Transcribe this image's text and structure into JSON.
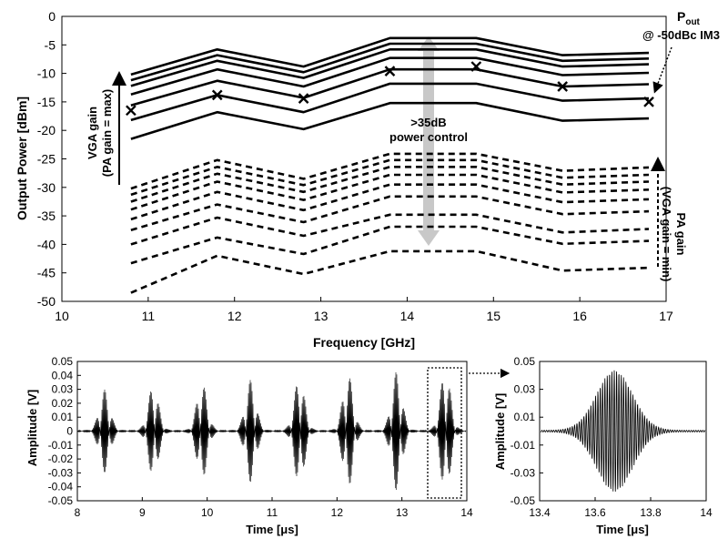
{
  "chart_data": [
    {
      "type": "line",
      "title": "",
      "xlabel": "Frequency [GHz]",
      "ylabel": "Output Power [dBm]",
      "xlim": [
        10,
        17
      ],
      "ylim": [
        -50,
        0
      ],
      "x_ticks": [
        "10",
        "11",
        "12",
        "13",
        "14",
        "15",
        "16",
        "17"
      ],
      "y_ticks": [
        "0",
        "-5",
        "-10",
        "-15",
        "-20",
        "-25",
        "-30",
        "-35",
        "-40",
        "-45",
        "-50"
      ],
      "grid": false,
      "x": [
        10.8,
        11.8,
        12.8,
        13.8,
        14.8,
        15.8,
        16.8
      ],
      "vga_series_solid": [
        [
          -10.2,
          -5.8,
          -8.8,
          -3.8,
          -3.8,
          -6.8,
          -6.4
        ],
        [
          -11.2,
          -6.8,
          -9.8,
          -4.8,
          -4.8,
          -7.8,
          -7.4
        ],
        [
          -12.2,
          -7.8,
          -10.8,
          -5.8,
          -5.8,
          -8.8,
          -8.4
        ],
        [
          -13.7,
          -9.3,
          -12.3,
          -7.3,
          -7.3,
          -10.3,
          -9.9
        ],
        [
          -15.6,
          -11.3,
          -14.3,
          -9.3,
          -9.3,
          -12.3,
          -11.9
        ],
        [
          -18.2,
          -13.8,
          -16.8,
          -11.8,
          -11.8,
          -14.8,
          -14.4
        ],
        [
          -21.5,
          -16.8,
          -19.8,
          -15.2,
          -15.2,
          -18.3,
          -17.9
        ]
      ],
      "pa_series_dashed": [
        [
          -30.2,
          -25.2,
          -28.5,
          -24.1,
          -24.1,
          -27.1,
          -26.5
        ],
        [
          -31.3,
          -26.4,
          -29.6,
          -25.2,
          -25.2,
          -28.3,
          -27.8
        ],
        [
          -32.5,
          -27.6,
          -30.8,
          -26.4,
          -26.4,
          -29.5,
          -29.0
        ],
        [
          -33.9,
          -29.0,
          -32.2,
          -27.8,
          -27.8,
          -30.9,
          -30.4
        ],
        [
          -35.6,
          -30.8,
          -34.0,
          -29.5,
          -29.5,
          -32.6,
          -32.1
        ],
        [
          -37.5,
          -33.0,
          -36.1,
          -31.6,
          -31.6,
          -34.7,
          -34.2
        ],
        [
          -40.0,
          -35.3,
          -38.5,
          -34.8,
          -34.8,
          -37.9,
          -37.3
        ],
        [
          -43.3,
          -38.8,
          -41.7,
          -36.9,
          -36.9,
          -39.9,
          -39.4
        ],
        [
          -48.5,
          -42.0,
          -45.2,
          -41.2,
          -41.2,
          -44.6,
          -44.1
        ]
      ],
      "markers_x": [
        10.8,
        11.8,
        12.8,
        13.8,
        14.8,
        15.8,
        16.8
      ],
      "markers_y": [
        -16.5,
        -13.8,
        -14.4,
        -9.6,
        -8.8,
        -12.3,
        -15.0
      ],
      "annotations": {
        "pout_main": "P",
        "pout_sub": "out",
        "pout_line2": "@ -50dBc IM3",
        "control_line1": ">35dB",
        "control_line2": "power control",
        "vga_line1": "VGA gain",
        "vga_line2": "(PA gain = max)",
        "pa_line1": "PA gain",
        "pa_line2": "(VGA gain = min)"
      }
    },
    {
      "type": "line",
      "title": "",
      "xlabel": "Time [μs]",
      "ylabel": "Amplitude [V]",
      "xlim": [
        8,
        14
      ],
      "ylim": [
        -0.05,
        0.05
      ],
      "x_ticks": [
        "8",
        "9",
        "10",
        "11",
        "12",
        "13",
        "14"
      ],
      "y_ticks": [
        "0.05",
        "0.04",
        "0.03",
        "0.02",
        "0.01",
        "0",
        "-0.01",
        "-0.02",
        "-0.03",
        "-0.04",
        "-0.05"
      ],
      "pulse_centers_us": [
        8.42,
        9.17,
        9.92,
        10.67,
        11.42,
        12.17,
        12.92,
        13.67
      ],
      "pulse_peaks_v": [
        0.029,
        0.032,
        0.034,
        0.036,
        0.038,
        0.04,
        0.042,
        0.043
      ],
      "grid": false
    },
    {
      "type": "line",
      "title": "",
      "xlabel": "Time [μs]",
      "ylabel": "Amplitude [V]",
      "xlim": [
        13.4,
        14
      ],
      "ylim": [
        -0.05,
        0.05
      ],
      "x_ticks": [
        "13.4",
        "13.6",
        "13.8",
        "14"
      ],
      "y_ticks": [
        "0.05",
        "0.03",
        "0.01",
        "-0.01",
        "-0.03",
        "-0.05"
      ],
      "pulse_center_us": 13.67,
      "pulse_peak_v": 0.043,
      "grid": false
    }
  ]
}
